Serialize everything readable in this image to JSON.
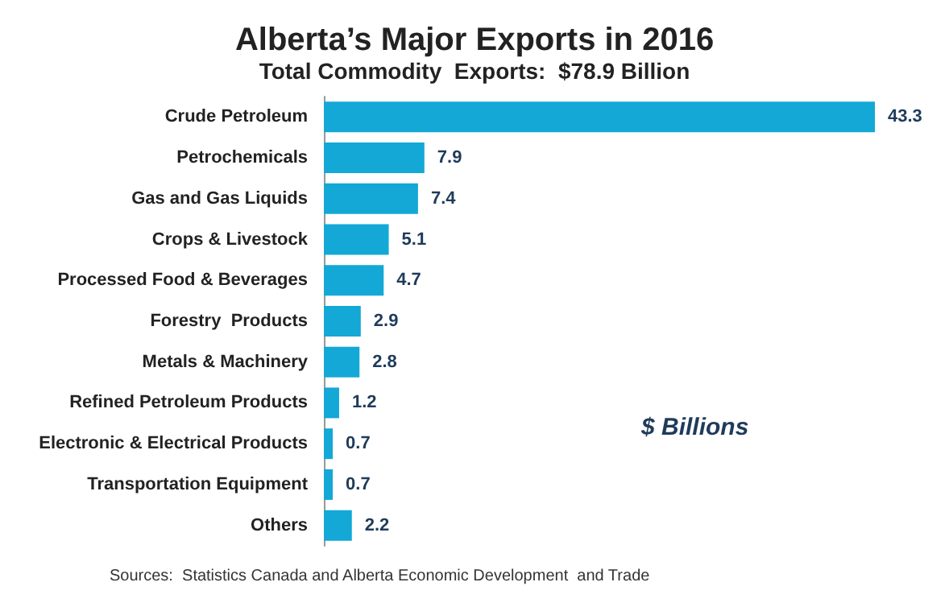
{
  "chart_data": {
    "type": "bar",
    "orientation": "horizontal",
    "title": "Alberta’s Major Exports in 2016",
    "subtitle": "Total Commodity  Exports:  $78.9 Billion",
    "categories": [
      "Crude Petroleum",
      "Petrochemicals",
      "Gas and Gas Liquids",
      "Crops & Livestock",
      "Processed Food & Beverages",
      "Forestry  Products",
      "Metals & Machinery",
      "Refined Petroleum Products",
      "Electronic & Electrical Products",
      "Transportation Equipment",
      "Others"
    ],
    "values": [
      43.3,
      7.9,
      7.4,
      5.1,
      4.7,
      2.9,
      2.8,
      1.2,
      0.7,
      0.7,
      2.2
    ],
    "color": "#13a8d6",
    "data_labels": true,
    "annotations": [
      "$ Billions",
      "Sources:  Statistics Canada and Alberta Economic Development  and Trade"
    ]
  }
}
